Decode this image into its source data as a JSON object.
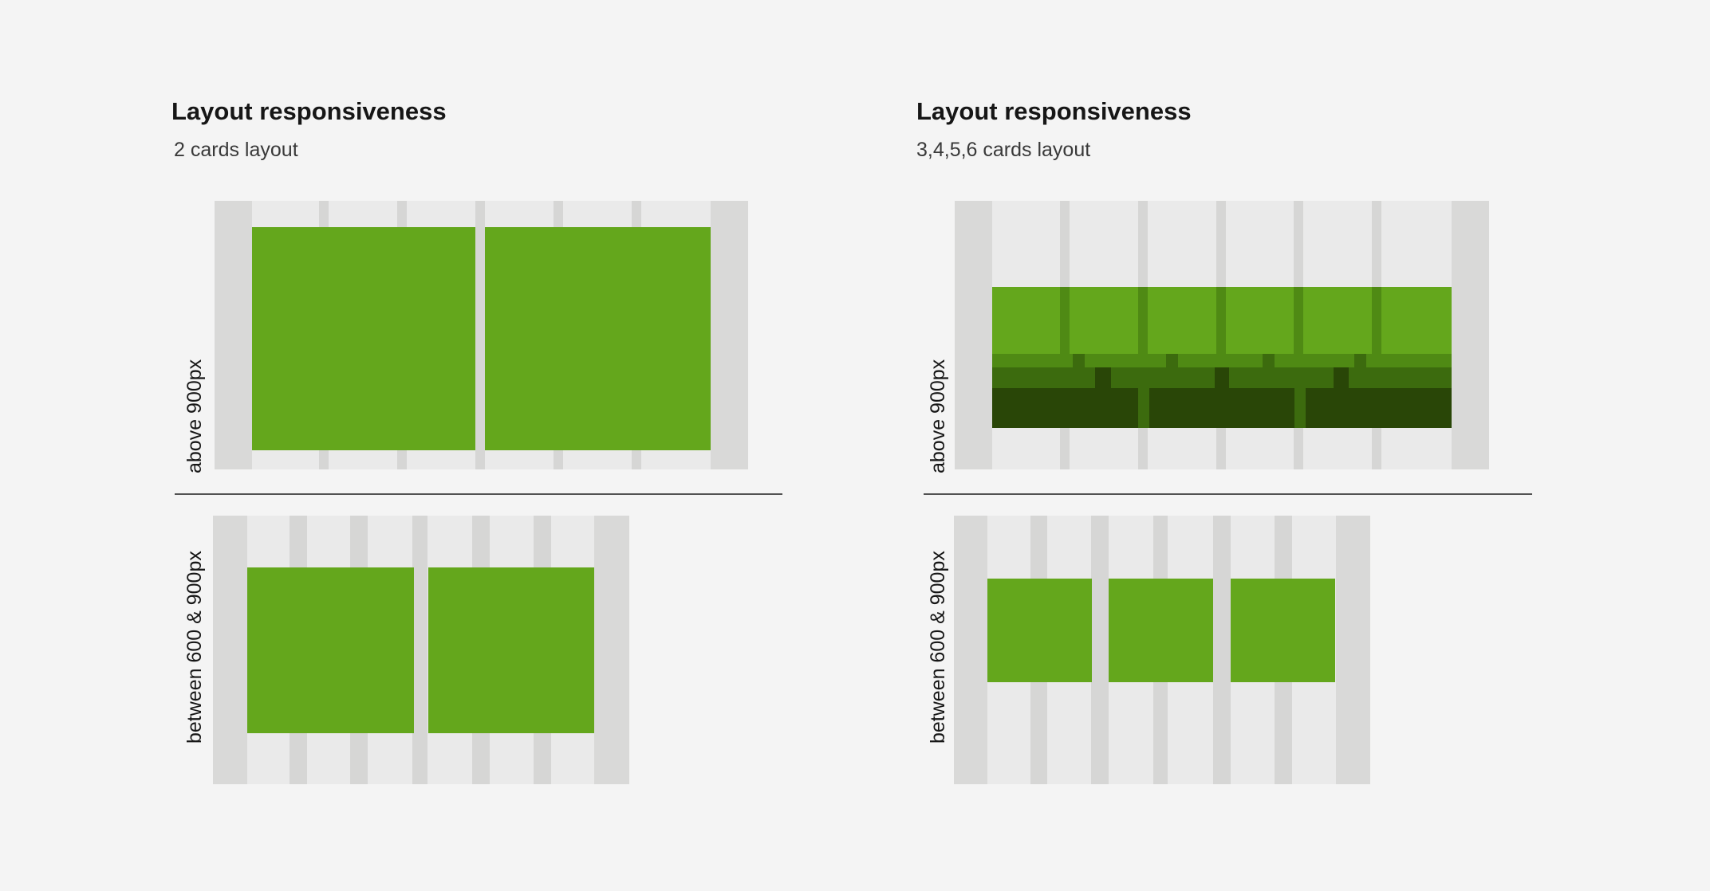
{
  "left_panel": {
    "title": "Layout responsiveness",
    "subtitle": "2 cards layout",
    "row_above_label": "above 900px",
    "row_between_label": "between 600 & 900px"
  },
  "right_panel": {
    "title": "Layout responsiveness",
    "subtitle": "3,4,5,6 cards layout",
    "row_above_label": "above 900px",
    "row_between_label": "between 600 & 900px"
  },
  "colors": {
    "background": "#f4f4f4",
    "grid_margin": "#d9d9d8",
    "grid_column": "#eaeaea",
    "grid_gutter": "#d6d6d5",
    "card": "#64a71c",
    "card_layer_2": "#4f8a14",
    "card_layer_3": "#3c6b0e",
    "card_layer_4": "#294607"
  }
}
